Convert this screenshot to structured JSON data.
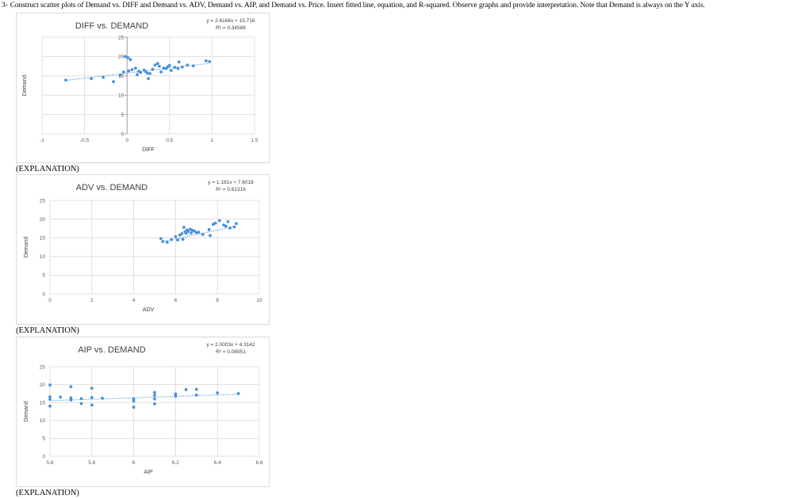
{
  "question": {
    "number": "3-",
    "text": "Construct scatter plots of Demand vs. DIFF and Demand vs. ADV, Demand vs. AIP, and Demand vs. Price.  Insert fitted line, equation, and R-squared. Observe graphs and provide interpretation.  Note that Demand is always on the Y axis."
  },
  "explanation_label": "(EXPLANATION)",
  "colors": {
    "marker": "#4a90d9",
    "trendline": "#4a90d9",
    "grid": "#d9d9d9",
    "text": "#404040"
  },
  "chart_data": [
    {
      "type": "scatter",
      "title": "DIFF vs. DEMAND",
      "xlabel": "DIFF",
      "ylabel": "Demand",
      "equation": "y = 2.6166x + 15.716",
      "r_squared": "R² = 0.34588",
      "trendline": {
        "slope": 2.6166,
        "intercept": 15.716,
        "style": "dotted"
      },
      "xlim": [
        -1,
        1.5
      ],
      "ylim": [
        0,
        25
      ],
      "xticks": [
        "-1",
        "-0.5",
        "0",
        "0.5",
        "1",
        "1.5"
      ],
      "yticks": [
        "0",
        "5",
        "10",
        "15",
        "20",
        "25"
      ],
      "grid": true,
      "points": [
        [
          -0.72,
          13.9
        ],
        [
          -0.42,
          14.3
        ],
        [
          -0.28,
          14.6
        ],
        [
          -0.16,
          13.5
        ],
        [
          -0.08,
          15.2
        ],
        [
          -0.04,
          16.0
        ],
        [
          -0.02,
          20.0
        ],
        [
          0.01,
          19.7
        ],
        [
          0.04,
          19.2
        ],
        [
          0.02,
          16.3
        ],
        [
          0.06,
          16.6
        ],
        [
          0.1,
          17.0
        ],
        [
          0.12,
          15.3
        ],
        [
          0.14,
          16.2
        ],
        [
          0.16,
          15.9
        ],
        [
          0.2,
          16.5
        ],
        [
          0.22,
          16.1
        ],
        [
          0.24,
          15.7
        ],
        [
          0.25,
          14.3
        ],
        [
          0.27,
          15.6
        ],
        [
          0.3,
          16.7
        ],
        [
          0.33,
          17.8
        ],
        [
          0.36,
          18.2
        ],
        [
          0.38,
          17.5
        ],
        [
          0.4,
          16.0
        ],
        [
          0.43,
          17.0
        ],
        [
          0.46,
          16.9
        ],
        [
          0.48,
          17.4
        ],
        [
          0.5,
          17.7
        ],
        [
          0.52,
          16.4
        ],
        [
          0.56,
          17.2
        ],
        [
          0.6,
          16.9
        ],
        [
          0.61,
          18.6
        ],
        [
          0.65,
          17.3
        ],
        [
          0.71,
          17.8
        ],
        [
          0.78,
          17.6
        ],
        [
          0.93,
          18.9
        ],
        [
          0.97,
          18.7
        ]
      ]
    },
    {
      "type": "scatter",
      "title": "ADV vs. DEMAND",
      "xlabel": "ADV",
      "ylabel": "Demand",
      "equation": "y = 1.181x + 7.6018",
      "r_squared": "R² = 0.61316",
      "trendline": {
        "slope": 1.181,
        "intercept": 7.6018,
        "style": "dotted"
      },
      "xlim": [
        0,
        10
      ],
      "ylim": [
        0,
        25
      ],
      "xticks": [
        "0",
        "2",
        "4",
        "6",
        "8",
        "10"
      ],
      "yticks": [
        "0",
        "5",
        "10",
        "15",
        "20",
        "25"
      ],
      "grid": true,
      "points": [
        [
          5.3,
          14.8
        ],
        [
          5.4,
          14.0
        ],
        [
          5.6,
          13.8
        ],
        [
          5.8,
          14.5
        ],
        [
          6.0,
          15.3
        ],
        [
          6.1,
          14.4
        ],
        [
          6.2,
          15.7
        ],
        [
          6.3,
          16.1
        ],
        [
          6.35,
          14.6
        ],
        [
          6.4,
          17.8
        ],
        [
          6.45,
          16.6
        ],
        [
          6.5,
          16.2
        ],
        [
          6.55,
          17.1
        ],
        [
          6.6,
          16.7
        ],
        [
          6.7,
          17.3
        ],
        [
          6.75,
          16.3
        ],
        [
          6.8,
          17.0
        ],
        [
          6.9,
          16.8
        ],
        [
          7.0,
          16.4
        ],
        [
          7.1,
          16.5
        ],
        [
          7.3,
          15.9
        ],
        [
          7.6,
          17.2
        ],
        [
          7.65,
          15.6
        ],
        [
          7.8,
          18.6
        ],
        [
          7.9,
          18.9
        ],
        [
          8.1,
          19.6
        ],
        [
          8.3,
          18.4
        ],
        [
          8.4,
          18.1
        ],
        [
          8.5,
          19.3
        ],
        [
          8.6,
          17.6
        ],
        [
          8.8,
          17.9
        ],
        [
          8.9,
          18.8
        ]
      ]
    },
    {
      "type": "scatter",
      "title": "AIP vs. DEMAND",
      "xlabel": "AIP",
      "ylabel": "Demand",
      "equation": "y = 2.0003x + 4.3142",
      "r_squared": "R² = 0.08951",
      "trendline": {
        "slope": 2.0003,
        "intercept": 4.3142,
        "style": "dotted"
      },
      "xlim": [
        5.6,
        6.6
      ],
      "ylim": [
        0,
        25
      ],
      "xticks": [
        "5.6",
        "5.8",
        "6",
        "6.2",
        "6.4",
        "6.6"
      ],
      "yticks": [
        "0",
        "5",
        "10",
        "15",
        "20",
        "25"
      ],
      "grid": true,
      "points": [
        [
          5.6,
          19.9
        ],
        [
          5.6,
          16.6
        ],
        [
          5.6,
          15.9
        ],
        [
          5.6,
          14.0
        ],
        [
          5.65,
          16.5
        ],
        [
          5.7,
          19.4
        ],
        [
          5.7,
          16.3
        ],
        [
          5.7,
          15.7
        ],
        [
          5.75,
          16.1
        ],
        [
          5.75,
          14.7
        ],
        [
          5.8,
          19.0
        ],
        [
          5.8,
          16.4
        ],
        [
          5.8,
          14.3
        ],
        [
          5.85,
          16.2
        ],
        [
          6.0,
          16.0
        ],
        [
          6.0,
          15.4
        ],
        [
          6.0,
          13.7
        ],
        [
          6.1,
          17.8
        ],
        [
          6.1,
          17.0
        ],
        [
          6.1,
          16.0
        ],
        [
          6.1,
          14.6
        ],
        [
          6.2,
          17.4
        ],
        [
          6.2,
          16.8
        ],
        [
          6.25,
          18.6
        ],
        [
          6.3,
          18.7
        ],
        [
          6.3,
          17.1
        ],
        [
          6.4,
          17.7
        ],
        [
          6.5,
          17.5
        ]
      ]
    }
  ]
}
